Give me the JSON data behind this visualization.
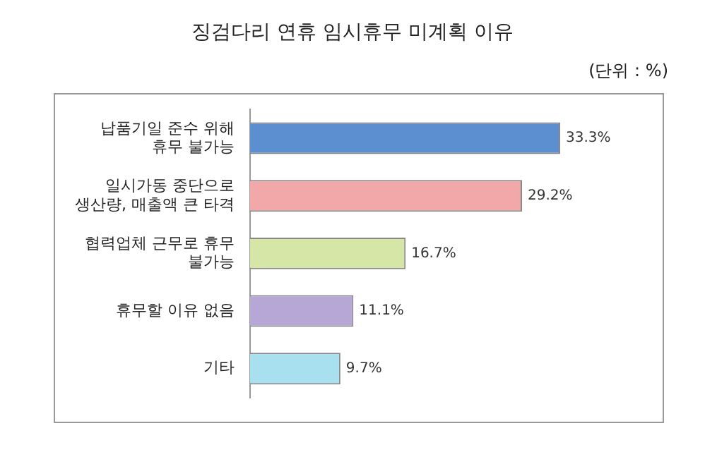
{
  "chart_data": {
    "type": "bar",
    "orientation": "horizontal",
    "title": "징검다리 연휴 임시휴무 미계획 이유",
    "annotations": [
      "(단위 : %)"
    ],
    "categories": [
      "납품기일 준수 위해 휴무 불가능",
      "일시가동 중단으로 생산량, 매출액 큰 타격",
      "협력업체 근무로 휴무 불가능",
      "휴무할 이유 없음",
      "기타"
    ],
    "values": [
      33.3,
      29.2,
      16.7,
      11.1,
      9.7
    ],
    "colors": [
      "#5b8fd0",
      "#f2a7a9",
      "#d6e6a6",
      "#b7a7d6",
      "#a9e0f0"
    ],
    "value_labels": [
      "33.3%",
      "29.2%",
      "16.7%",
      "11.1%",
      "9.7%"
    ]
  }
}
